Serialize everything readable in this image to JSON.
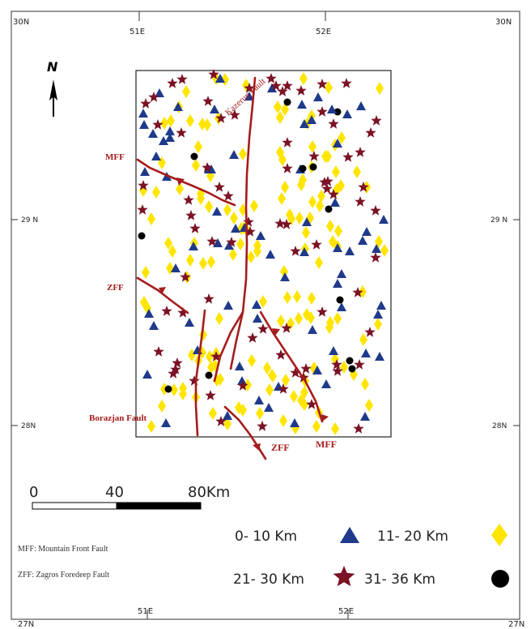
{
  "map": {
    "north_label": "N",
    "grid_labels": {
      "top_left": "30N",
      "top_right": "30N",
      "bottom_left": "27N",
      "bottom_right": "27N",
      "left_29": "29 N",
      "right_29": "29 N",
      "left_28": "28N",
      "right_28": "28N",
      "top_51": "51E",
      "top_52": "52E",
      "bottom_51": "51E",
      "bottom_52": "52E"
    },
    "fault_labels": {
      "kazerun": "Kazerun Fault",
      "mff_top": "MFF",
      "zff_left": "ZFF",
      "borazjan": "Borazjan Fault",
      "zff_bottom": "ZFF",
      "mff_bottom": "MFF"
    },
    "colors": {
      "fault": "#a51c1c",
      "triangle": "#1f3a8a",
      "diamond": "#ffe500",
      "star": "#7a1325",
      "circle": "#000000"
    }
  },
  "scale_bar": {
    "labels": [
      "0",
      "40",
      "80Km"
    ]
  },
  "notes": {
    "mff": "MFF: Mountain Front Fault",
    "zff": "ZFF: Zagros Foredeep Fault"
  },
  "legend": [
    {
      "label": "0- 10 Km",
      "symbol": "triangle",
      "color": "#1f3a8a"
    },
    {
      "label": "11-  20 Km",
      "symbol": "diamond",
      "color": "#ffe500"
    },
    {
      "label": "21- 30 Km",
      "symbol": "star",
      "color": "#7a1325"
    },
    {
      "label": "31- 36 Km",
      "symbol": "circle",
      "color": "#000000"
    }
  ]
}
